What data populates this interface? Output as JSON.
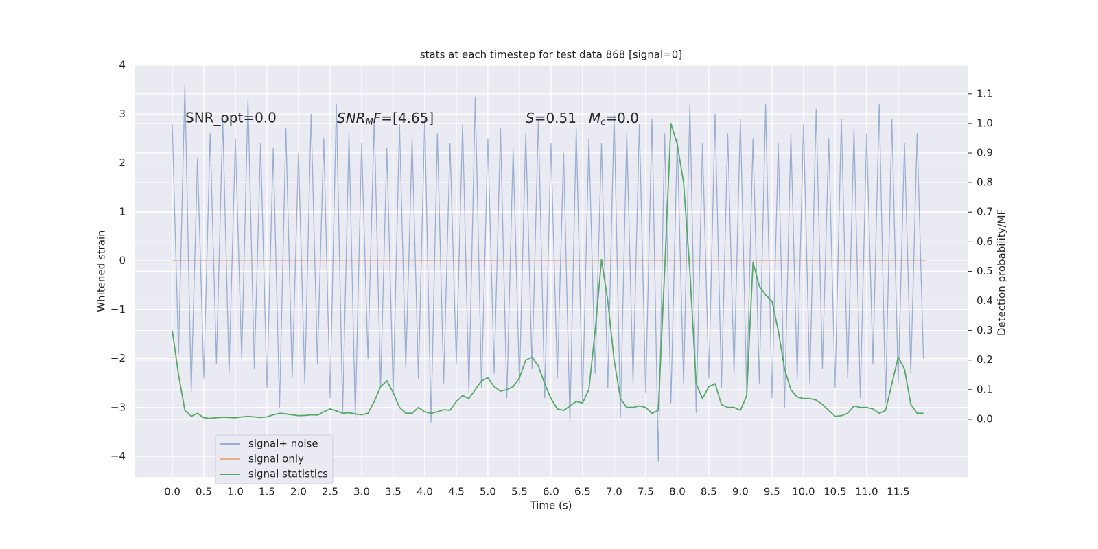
{
  "chart_data": {
    "type": "line",
    "title": "stats at each timestep for test data 868 [signal=0]",
    "xlabel": "Time (s)",
    "ylabel": "Whitened strain",
    "y2label": "Detection probability/MF",
    "annotations": [
      [
        "SNR_opt=0.0"
      ],
      [
        "SNR",
        "M",
        "F",
        "=[4.65]"
      ],
      [
        "S",
        "=0.51"
      ],
      [
        "M",
        "c",
        "=0.0"
      ]
    ],
    "xlim": [
      -0.587,
      12.6
    ],
    "xticks": [
      {
        "value": 0,
        "label": "0.0"
      },
      0.5,
      {
        "value": 1,
        "label": "1.0"
      },
      1.5,
      {
        "value": 2,
        "label": "2.0"
      },
      2.5,
      {
        "value": 3,
        "label": "3.0"
      },
      3.5,
      {
        "value": 4,
        "label": "4.0"
      },
      4.5,
      {
        "value": 5,
        "label": "5.0"
      },
      5.5,
      {
        "value": 6,
        "label": "6.0"
      },
      6.5,
      {
        "value": 7,
        "label": "7.0"
      },
      7.5,
      {
        "value": 8,
        "label": "8.0"
      },
      8.5,
      {
        "value": 9,
        "label": "9.0"
      },
      9.5,
      {
        "value": 10,
        "label": "10.0"
      },
      10.5,
      {
        "value": 11,
        "label": "11.0"
      },
      11.5
    ],
    "ylim": [
      -4.42,
      4
    ],
    "yticks": [
      {
        "value": -4,
        "label": "−4"
      },
      {
        "value": -3,
        "label": "−3"
      },
      {
        "value": -2,
        "label": "−2"
      },
      {
        "value": -1,
        "label": "−1"
      },
      0,
      1,
      2,
      3,
      4
    ],
    "y2lim": [
      -0.195,
      1.197
    ],
    "y2ticks": [
      {
        "value": 0,
        "label": "0.0"
      },
      0.1,
      0.2,
      0.3,
      0.4,
      0.5,
      0.6,
      0.7,
      0.8,
      0.9,
      {
        "value": 1,
        "label": "1.0"
      },
      1.1
    ],
    "grid": true,
    "legend": "lower left",
    "series": [
      {
        "name": "signal+ noise",
        "color": "#4c72b0",
        "x": [
          0,
          0.1,
          0.2,
          0.3,
          0.4,
          0.5,
          0.6,
          0.7,
          0.8,
          0.9,
          1,
          1.1,
          1.2,
          1.3,
          1.4,
          1.5,
          1.6,
          1.7,
          1.8,
          1.9,
          2,
          2.1,
          2.2,
          2.3,
          2.4,
          2.5,
          2.6,
          2.7,
          2.8,
          2.9,
          3,
          3.1,
          3.2,
          3.3,
          3.4,
          3.5,
          3.6,
          3.7,
          3.8,
          3.9,
          4,
          4.1,
          4.2,
          4.3,
          4.4,
          4.5,
          4.6,
          4.7,
          4.8,
          4.9,
          5,
          5.1,
          5.2,
          5.3,
          5.4,
          5.5,
          5.6,
          5.7,
          5.8,
          5.9,
          6,
          6.1,
          6.2,
          6.3,
          6.4,
          6.5,
          6.6,
          6.7,
          6.8,
          6.9,
          7,
          7.1,
          7.2,
          7.3,
          7.4,
          7.5,
          7.6,
          7.7,
          7.8,
          7.9,
          8,
          8.1,
          8.2,
          8.3,
          8.4,
          8.5,
          8.6,
          8.7,
          8.8,
          8.9,
          9,
          9.1,
          9.2,
          9.3,
          9.4,
          9.5,
          9.6,
          9.7,
          9.8,
          9.9,
          10,
          10.1,
          10.2,
          10.3,
          10.4,
          10.5,
          10.6,
          10.7,
          10.8,
          10.9,
          11,
          11.1,
          11.2,
          11.3,
          11.4,
          11.5,
          11.6,
          11.7,
          11.8,
          11.9
        ],
        "values": [
          2.8,
          -1.9,
          3.6,
          -2.7,
          2.1,
          -2.4,
          2.6,
          -2.1,
          2.9,
          -2.3,
          2.5,
          -2.0,
          3.3,
          -2.2,
          2.4,
          -2.6,
          2.3,
          -3.0,
          2.7,
          -2.4,
          2.2,
          -2.5,
          3.0,
          -2.1,
          2.5,
          -2.8,
          3.2,
          -3.1,
          2.6,
          -3.2,
          2.4,
          -2.0,
          2.9,
          -2.6,
          2.3,
          -2.7,
          2.8,
          -2.2,
          2.5,
          -2.4,
          2.9,
          -3.3,
          2.6,
          -2.5,
          2.4,
          -2.1,
          2.8,
          -2.7,
          3.35,
          -2.6,
          2.5,
          -2.3,
          2.7,
          -2.8,
          2.3,
          -2.5,
          2.6,
          -2.2,
          2.9,
          -2.8,
          2.4,
          -2.4,
          2.2,
          -3.3,
          2.7,
          -2.9,
          2.5,
          -2.3,
          2.4,
          -2.6,
          3.0,
          -3.2,
          2.6,
          -2.5,
          2.8,
          -2.7,
          2.9,
          -4.1,
          2.6,
          -2.9,
          2.5,
          -2.5,
          3.2,
          -3.1,
          2.4,
          -2.4,
          3.0,
          -2.6,
          2.6,
          -2.3,
          2.9,
          -2.7,
          2.5,
          -2.5,
          3.2,
          -2.8,
          2.4,
          -3.0,
          2.6,
          -2.4,
          2.8,
          -2.5,
          3.1,
          -2.2,
          2.5,
          -2.6,
          2.9,
          -2.4,
          2.7,
          -2.8,
          2.6,
          -2.1,
          3.2,
          -2.9,
          2.9,
          -2.5,
          2.4,
          -2.3,
          2.6,
          -2.0
        ]
      },
      {
        "name": "signal only",
        "color": "#dd8452",
        "x": [
          0,
          11.95
        ],
        "values": [
          0,
          0
        ]
      },
      {
        "name": "signal statistics",
        "color": "#55a868",
        "axis": "y2",
        "x": [
          0,
          0.1,
          0.2,
          0.3,
          0.4,
          0.5,
          0.6,
          0.7,
          0.8,
          0.9,
          1,
          1.1,
          1.2,
          1.3,
          1.4,
          1.5,
          1.6,
          1.7,
          1.8,
          1.9,
          2,
          2.1,
          2.2,
          2.3,
          2.4,
          2.5,
          2.6,
          2.7,
          2.8,
          2.9,
          3,
          3.1,
          3.2,
          3.3,
          3.4,
          3.5,
          3.6,
          3.7,
          3.8,
          3.9,
          4,
          4.1,
          4.2,
          4.3,
          4.4,
          4.5,
          4.6,
          4.7,
          4.8,
          4.9,
          5,
          5.1,
          5.2,
          5.3,
          5.4,
          5.5,
          5.6,
          5.7,
          5.8,
          5.9,
          6,
          6.1,
          6.2,
          6.3,
          6.4,
          6.5,
          6.6,
          6.7,
          6.8,
          6.9,
          7,
          7.1,
          7.2,
          7.3,
          7.4,
          7.5,
          7.6,
          7.7,
          7.8,
          7.9,
          8,
          8.1,
          8.2,
          8.3,
          8.4,
          8.5,
          8.6,
          8.7,
          8.8,
          8.9,
          9,
          9.1,
          9.2,
          9.3,
          9.4,
          9.5,
          9.6,
          9.7,
          9.8,
          9.9,
          10,
          10.1,
          10.2,
          10.3,
          10.4,
          10.5,
          10.6,
          10.7,
          10.8,
          10.9,
          11,
          11.1,
          11.2,
          11.3,
          11.4,
          11.5,
          11.6,
          11.7,
          11.8,
          11.9
        ],
        "values": [
          0.3,
          0.15,
          0.03,
          0.01,
          0.02,
          0.005,
          0.003,
          0.005,
          0.007,
          0.006,
          0.005,
          0.008,
          0.01,
          0.008,
          0.006,
          0.008,
          0.015,
          0.02,
          0.018,
          0.015,
          0.012,
          0.013,
          0.015,
          0.014,
          0.025,
          0.035,
          0.028,
          0.02,
          0.022,
          0.018,
          0.015,
          0.02,
          0.06,
          0.11,
          0.13,
          0.09,
          0.04,
          0.02,
          0.02,
          0.04,
          0.025,
          0.02,
          0.025,
          0.032,
          0.03,
          0.06,
          0.08,
          0.07,
          0.1,
          0.13,
          0.14,
          0.11,
          0.095,
          0.1,
          0.11,
          0.14,
          0.2,
          0.21,
          0.18,
          0.12,
          0.07,
          0.035,
          0.03,
          0.045,
          0.06,
          0.055,
          0.1,
          0.3,
          0.54,
          0.4,
          0.2,
          0.07,
          0.04,
          0.04,
          0.045,
          0.04,
          0.02,
          0.03,
          0.5,
          1.0,
          0.93,
          0.8,
          0.5,
          0.12,
          0.07,
          0.11,
          0.12,
          0.05,
          0.04,
          0.04,
          0.03,
          0.08,
          0.53,
          0.45,
          0.42,
          0.4,
          0.3,
          0.17,
          0.1,
          0.075,
          0.07,
          0.07,
          0.065,
          0.05,
          0.03,
          0.01,
          0.012,
          0.02,
          0.045,
          0.04,
          0.04,
          0.035,
          0.02,
          0.03,
          0.12,
          0.21,
          0.17,
          0.05,
          0.02,
          0.02
        ]
      }
    ]
  }
}
